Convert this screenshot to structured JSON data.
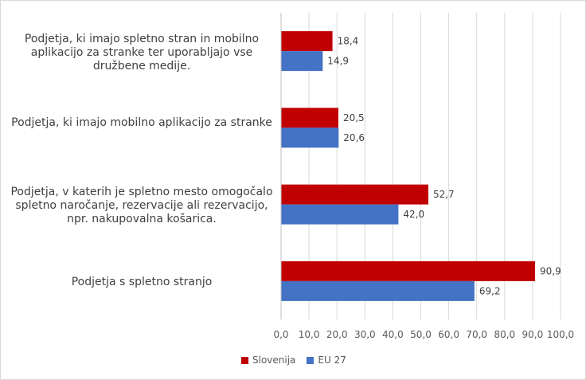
{
  "chart_data": {
    "type": "bar",
    "orientation": "horizontal",
    "categories": [
      "Podjetja, ki imajo spletno stran in mobilno aplikacijo za stranke ter uporabljajo vse družbene medije.",
      "Podjetja, ki imajo mobilno aplikacijo za stranke",
      "Podjetja, v katerih je spletno mesto omogočalo spletno naročanje, rezervacije ali rezervacijo, npr. nakupovalna košarica.",
      "Podjetja s spletno stranjo"
    ],
    "series": [
      {
        "name": "Slovenija",
        "color": "#c00000",
        "values": [
          18.4,
          20.5,
          52.7,
          90.9
        ],
        "labels": [
          "18,4",
          "20,5",
          "52,7",
          "90,9"
        ]
      },
      {
        "name": "EU 27",
        "color": "#4472c4",
        "values": [
          14.9,
          20.6,
          42.0,
          69.2
        ],
        "labels": [
          "14,9",
          "20,6",
          "42,0",
          "69,2"
        ]
      }
    ],
    "xlim": [
      0,
      100
    ],
    "ticks": [
      "0,0",
      "10,0",
      "20,0",
      "30,0",
      "40,0",
      "50,0",
      "60,0",
      "70,0",
      "80,0",
      "90,0",
      "100,0"
    ],
    "grid": true,
    "legend_position": "bottom",
    "title": "",
    "xlabel": "",
    "ylabel": ""
  }
}
